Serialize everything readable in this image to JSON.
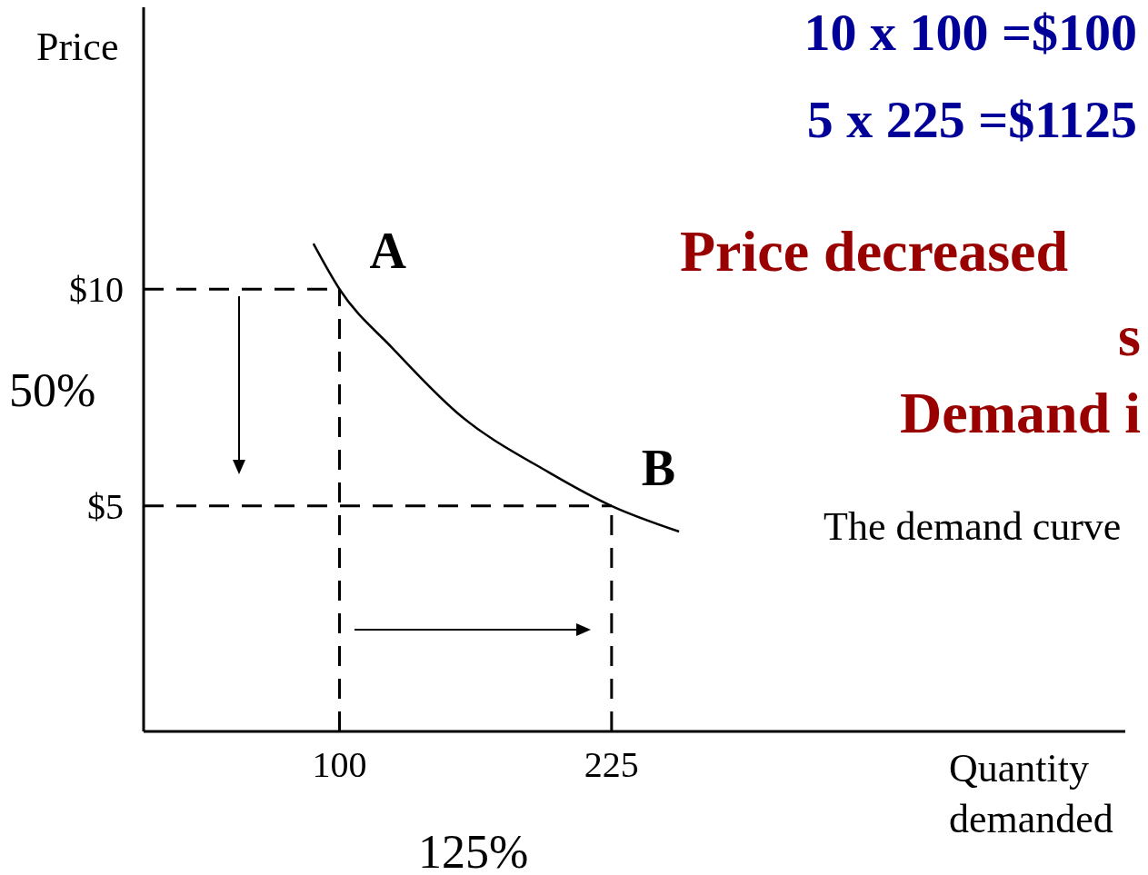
{
  "chart_data": {
    "type": "line",
    "xlabel": "Quantity demanded",
    "ylabel": "Price",
    "x": [
      88,
      100,
      124.5,
      154,
      196,
      225,
      256
    ],
    "series": [
      {
        "color": "#000000",
        "values": [
          11.05,
          10,
          8.63,
          7.15,
          5.78,
          5,
          4.41
        ]
      }
    ],
    "xlim": [
      10,
      461
    ],
    "ylim": [
      -0.2,
      16.5
    ],
    "xticks": [
      100,
      225
    ],
    "yticks": [
      {
        "value": 10,
        "label": "$10"
      },
      {
        "value": 5,
        "label": "$5"
      }
    ],
    "marker": "none",
    "line_style": "solid",
    "ref_lines": [
      {
        "axis": "y",
        "value": 10,
        "line_style": "dashed",
        "color": "#000000"
      },
      {
        "axis": "y",
        "value": 5,
        "line_style": "dashed",
        "color": "#000000"
      },
      {
        "axis": "x",
        "value": 100,
        "line_style": "dashed",
        "color": "#000000"
      },
      {
        "axis": "x",
        "value": 225,
        "line_style": "dashed",
        "color": "#000000"
      }
    ],
    "annotations": [
      {
        "text": "A",
        "x": 100,
        "y": 10
      },
      {
        "text": "B",
        "x": 225,
        "y": 5
      },
      "10 x 100 =$100",
      "5 x 225 =$1125",
      "Price decreased",
      "s",
      "Demand i",
      "The demand curve",
      "50%",
      "125%"
    ]
  }
}
